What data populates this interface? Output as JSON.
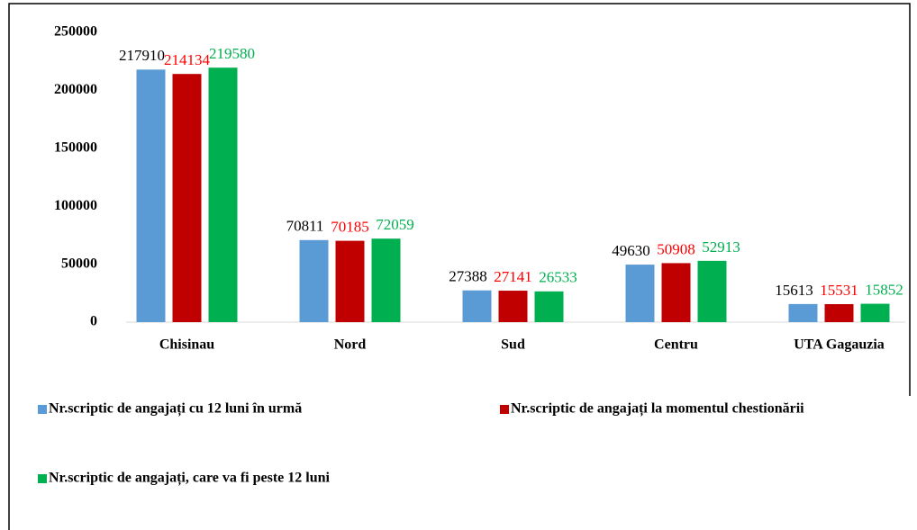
{
  "chart_data": {
    "type": "bar",
    "categories": [
      "Chisinau",
      "Nord",
      "Sud",
      "Centru",
      "UTA Gagauzia"
    ],
    "series": [
      {
        "name": "Nr.scriptic de angajați cu 12 luni în urmă",
        "color": "#5b9bd5",
        "label_color": "#000000",
        "values": [
          217910,
          70811,
          27388,
          49630,
          15613
        ]
      },
      {
        "name": "Nr.scriptic de angajați la momentul chestionării",
        "color": "#c00000",
        "label_color": "#ff0000",
        "values": [
          214134,
          70185,
          27141,
          50908,
          15531
        ]
      },
      {
        "name": "Nr.scriptic de angajați, care va fi peste 12 luni",
        "color": "#00b050",
        "label_color": "#00b050",
        "values": [
          219580,
          72059,
          26533,
          52913,
          15852
        ]
      }
    ],
    "ylim": [
      0,
      250000
    ],
    "yticks": [
      0,
      50000,
      100000,
      150000,
      200000,
      250000
    ],
    "grid": false,
    "legend": "bottom"
  }
}
